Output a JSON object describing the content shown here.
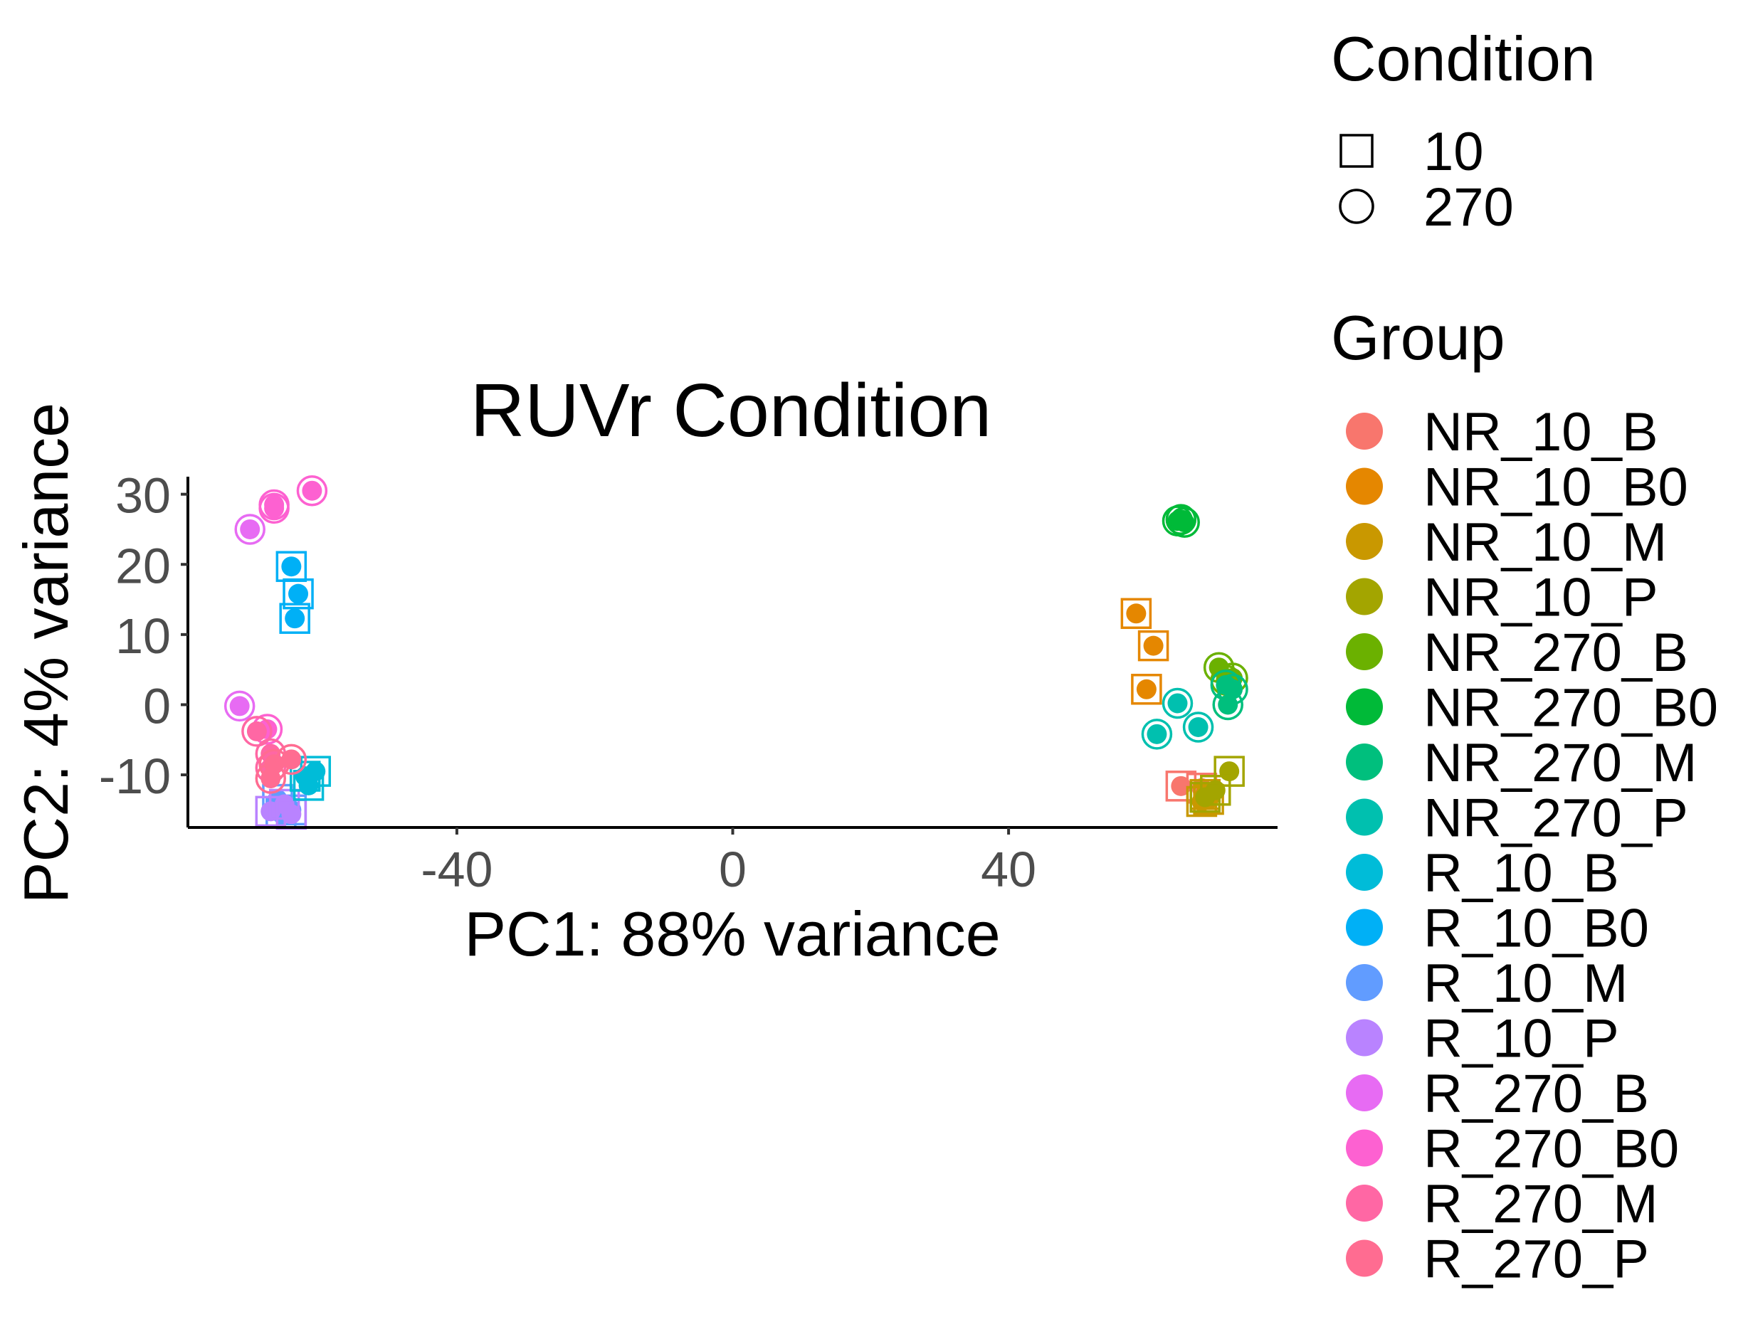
{
  "chart_data": {
    "type": "scatter",
    "title": "RUVr Condition",
    "xlabel": "PC1: 88% variance",
    "ylabel": "PC2: 4% variance",
    "xlim": [
      -79,
      79
    ],
    "ylim": [
      -17.5,
      32.5
    ],
    "xticks": [
      -40,
      0,
      40
    ],
    "yticks": [
      30,
      20,
      10,
      0,
      -10
    ],
    "xtick_labels": [
      "-40",
      "0",
      "40"
    ],
    "ytick_labels": [
      "30",
      "20",
      "10",
      "0",
      "-10"
    ],
    "grid": false,
    "legend_position": "right",
    "shape_legend": {
      "title": "Condition",
      "entries": [
        {
          "label": "10",
          "shape": "square"
        },
        {
          "label": "270",
          "shape": "circle"
        }
      ]
    },
    "color_legend": {
      "title": "Group",
      "entries": [
        {
          "label": "NR_10_B",
          "color": "#F8766D"
        },
        {
          "label": "NR_10_B0",
          "color": "#E58700"
        },
        {
          "label": "NR_10_M",
          "color": "#C99800"
        },
        {
          "label": "NR_10_P",
          "color": "#A3A500"
        },
        {
          "label": "NR_270_B",
          "color": "#6BB100"
        },
        {
          "label": "NR_270_B0",
          "color": "#00BA38"
        },
        {
          "label": "NR_270_M",
          "color": "#00BF7D"
        },
        {
          "label": "NR_270_P",
          "color": "#00C0AF"
        },
        {
          "label": "R_10_B",
          "color": "#00BCD8"
        },
        {
          "label": "R_10_B0",
          "color": "#00B0F6"
        },
        {
          "label": "R_10_M",
          "color": "#619CFF"
        },
        {
          "label": "R_10_P",
          "color": "#B983FF"
        },
        {
          "label": "R_270_B",
          "color": "#E76BF3"
        },
        {
          "label": "R_270_B0",
          "color": "#FD61D1"
        },
        {
          "label": "R_270_M",
          "color": "#FF67A4"
        },
        {
          "label": "R_270_P",
          "color": "#FF6C91"
        }
      ]
    },
    "points": [
      {
        "x": -64,
        "y": 19.7,
        "group": "R_10_B0",
        "condition": "10"
      },
      {
        "x": -63,
        "y": 15.8,
        "group": "R_10_B0",
        "condition": "10"
      },
      {
        "x": -63.5,
        "y": 12.3,
        "group": "R_10_B0",
        "condition": "10"
      },
      {
        "x": -66,
        "y": -13.5,
        "group": "R_10_M",
        "condition": "10"
      },
      {
        "x": -65.5,
        "y": -15.5,
        "group": "R_10_M",
        "condition": "10"
      },
      {
        "x": -64,
        "y": -15,
        "group": "R_10_M",
        "condition": "10"
      },
      {
        "x": -67,
        "y": -15.2,
        "group": "R_10_P",
        "condition": "10"
      },
      {
        "x": -65,
        "y": -14.2,
        "group": "R_10_P",
        "condition": "10"
      },
      {
        "x": -64,
        "y": -15.6,
        "group": "R_10_P",
        "condition": "10"
      },
      {
        "x": -62,
        "y": -10.2,
        "group": "R_10_B",
        "condition": "10"
      },
      {
        "x": -60.5,
        "y": -9.5,
        "group": "R_10_B",
        "condition": "10"
      },
      {
        "x": -61.5,
        "y": -11.5,
        "group": "R_10_B",
        "condition": "10"
      },
      {
        "x": -66.5,
        "y": 28.5,
        "group": "R_270_B0",
        "condition": "270"
      },
      {
        "x": -66.5,
        "y": 28,
        "group": "R_270_B0",
        "condition": "270"
      },
      {
        "x": -61,
        "y": 30.5,
        "group": "R_270_B0",
        "condition": "270"
      },
      {
        "x": -70,
        "y": 25,
        "group": "R_270_B",
        "condition": "270"
      },
      {
        "x": -71.5,
        "y": -0.2,
        "group": "R_270_B",
        "condition": "270"
      },
      {
        "x": -67.5,
        "y": -3.5,
        "group": "R_270_B0",
        "condition": "270"
      },
      {
        "x": -69,
        "y": -3.8,
        "group": "R_270_M",
        "condition": "270"
      },
      {
        "x": -67,
        "y": -7.0,
        "group": "R_270_M",
        "condition": "270"
      },
      {
        "x": -67,
        "y": -9.0,
        "group": "R_270_M",
        "condition": "270"
      },
      {
        "x": -66.5,
        "y": -8.5,
        "group": "R_270_P",
        "condition": "270"
      },
      {
        "x": -67,
        "y": -10.5,
        "group": "R_270_P",
        "condition": "270"
      },
      {
        "x": -64,
        "y": -7.8,
        "group": "R_270_P",
        "condition": "270"
      },
      {
        "x": 58.5,
        "y": 13,
        "group": "NR_10_B0",
        "condition": "10"
      },
      {
        "x": 61,
        "y": 8.4,
        "group": "NR_10_B0",
        "condition": "10"
      },
      {
        "x": 60,
        "y": 2.2,
        "group": "NR_10_B0",
        "condition": "10"
      },
      {
        "x": 65,
        "y": -11.6,
        "group": "NR_10_B",
        "condition": "10"
      },
      {
        "x": 68,
        "y": -11.9,
        "group": "NR_10_B",
        "condition": "10"
      },
      {
        "x": 68.5,
        "y": -12.8,
        "group": "NR_10_M",
        "condition": "10"
      },
      {
        "x": 69,
        "y": -13.5,
        "group": "NR_10_M",
        "condition": "10"
      },
      {
        "x": 68,
        "y": -13.8,
        "group": "NR_10_M",
        "condition": "10"
      },
      {
        "x": 72,
        "y": -9.5,
        "group": "NR_10_P",
        "condition": "10"
      },
      {
        "x": 70,
        "y": -12.2,
        "group": "NR_10_P",
        "condition": "10"
      },
      {
        "x": 68.5,
        "y": -13.2,
        "group": "NR_10_P",
        "condition": "10"
      },
      {
        "x": 64.5,
        "y": 26.2,
        "group": "NR_270_B0",
        "condition": "270"
      },
      {
        "x": 65.5,
        "y": 26,
        "group": "NR_270_B0",
        "condition": "270"
      },
      {
        "x": 65,
        "y": 26.4,
        "group": "NR_270_B0",
        "condition": "270"
      },
      {
        "x": 70.5,
        "y": 5.3,
        "group": "NR_270_B",
        "condition": "270"
      },
      {
        "x": 71.5,
        "y": 3.5,
        "group": "NR_270_B",
        "condition": "270"
      },
      {
        "x": 72.5,
        "y": 3.8,
        "group": "NR_270_B",
        "condition": "270"
      },
      {
        "x": 72.5,
        "y": 2.2,
        "group": "NR_270_M",
        "condition": "270"
      },
      {
        "x": 71.5,
        "y": 2.8,
        "group": "NR_270_M",
        "condition": "270"
      },
      {
        "x": 71.8,
        "y": 0.0,
        "group": "NR_270_M",
        "condition": "270"
      },
      {
        "x": 64.5,
        "y": 0.2,
        "group": "NR_270_P",
        "condition": "270"
      },
      {
        "x": 61.5,
        "y": -4.2,
        "group": "NR_270_P",
        "condition": "270"
      },
      {
        "x": 67.5,
        "y": -3.2,
        "group": "NR_270_P",
        "condition": "270"
      }
    ]
  }
}
